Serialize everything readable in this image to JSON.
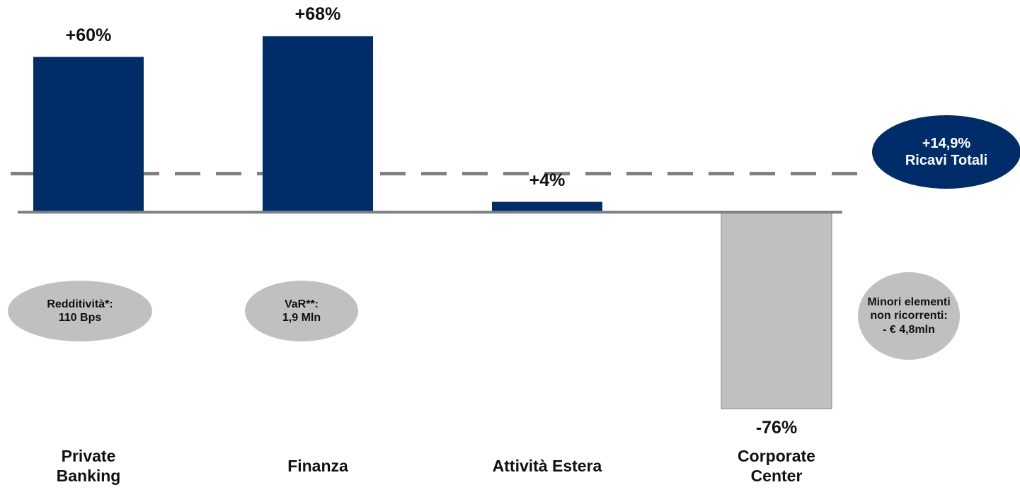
{
  "chart_data": {
    "type": "bar",
    "categories": [
      "Private Banking",
      "Finanza",
      "Attività Estera",
      "Corporate Center"
    ],
    "values": [
      60,
      68,
      4,
      -76
    ],
    "value_labels": [
      "+60%",
      "+68%",
      "+4%",
      "-76%"
    ],
    "colors": [
      "#002d6a",
      "#002d6a",
      "#002d6a",
      "#c0c0c0"
    ],
    "ylim": [
      -80,
      82
    ],
    "reference_line": {
      "value": 14.9,
      "label": "+14,9%",
      "name": "Ricavi Totali",
      "color": "#7f7f7f"
    },
    "annotations": [
      {
        "lines": [
          "Redditività*:",
          "110 Bps"
        ]
      },
      {
        "lines": [
          "VaR**:",
          "1,9 Mln"
        ]
      },
      {
        "lines": [
          "Minori elementi",
          "non ricorrenti:",
          "- € 4,8mln"
        ]
      }
    ]
  }
}
